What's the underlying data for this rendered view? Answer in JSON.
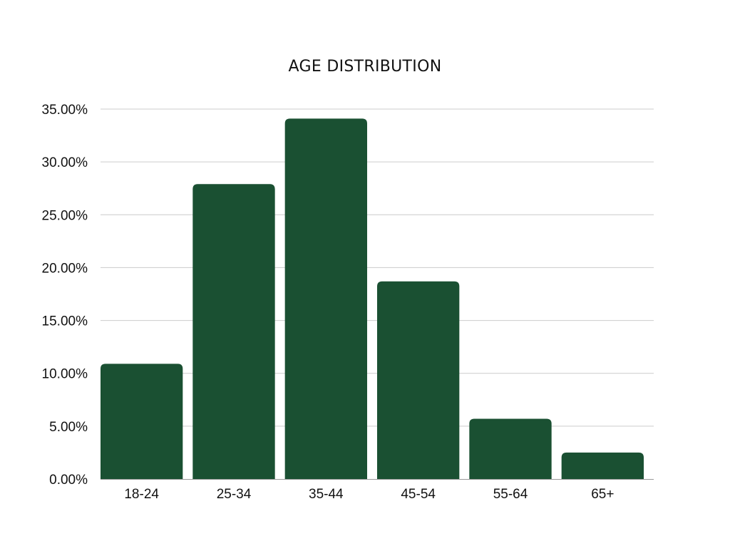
{
  "chart_data": {
    "type": "bar",
    "title": "AGE DISTRIBUTION",
    "xlabel": "",
    "ylabel": "",
    "categories": [
      "18-24",
      "25-34",
      "35-44",
      "45-54",
      "55-64",
      "65+"
    ],
    "values": [
      10.9,
      27.9,
      34.1,
      18.7,
      5.7,
      2.5
    ],
    "ylim": [
      0,
      35
    ],
    "yticks": [
      0,
      5,
      10,
      15,
      20,
      25,
      30,
      35
    ],
    "ytick_labels": [
      "0.00%",
      "5.00%",
      "10.00%",
      "15.00%",
      "20.00%",
      "25.00%",
      "30.00%",
      "35.00%"
    ],
    "grid": true,
    "legend": "none",
    "bar_color": "#1a5032",
    "grid_color": "#cccccc"
  }
}
